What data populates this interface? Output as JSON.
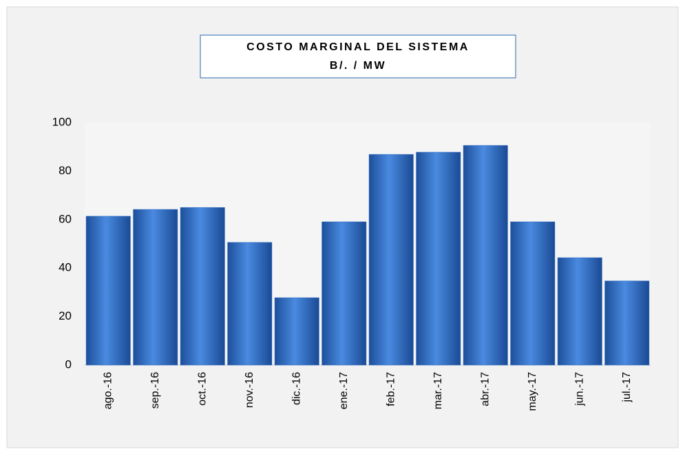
{
  "chart_data": {
    "type": "bar",
    "title": "COSTO MARGINAL DEL SISTEMA",
    "subtitle": "B/.  / MW",
    "categories": [
      "ago.-16",
      "sep.-16",
      "oct.-16",
      "nov.-16",
      "dic.-16",
      "ene.-17",
      "feb.-17",
      "mar.-17",
      "abr.-17",
      "may.-17",
      "jun.-17",
      "jul.-17"
    ],
    "values": [
      61.4,
      64.2,
      65,
      50.6,
      27.8,
      59.1,
      86.9,
      87.8,
      90.6,
      59.1,
      44.3,
      34.7
    ],
    "color": "#2e6bc4",
    "ylim": [
      0,
      100
    ],
    "yticks": [
      0,
      20,
      40,
      60,
      80,
      100
    ],
    "grid": false
  }
}
